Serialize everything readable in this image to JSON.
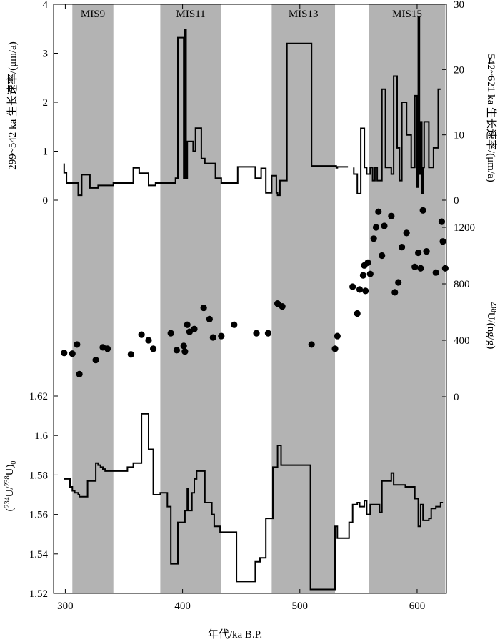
{
  "chart_data": {
    "type": "composite",
    "x_axis": {
      "label": "年代/ka B.P.",
      "range": [
        290,
        625
      ],
      "ticks": [
        300,
        400,
        500,
        600
      ]
    },
    "mis_bands": [
      {
        "label": "MIS9",
        "start": 306,
        "end": 341
      },
      {
        "label": "MIS11",
        "start": 381,
        "end": 433
      },
      {
        "label": "MIS13",
        "start": 476,
        "end": 530
      },
      {
        "label": "MIS15",
        "start": 559,
        "end": 624
      }
    ],
    "panels": [
      {
        "id": "growth-rate",
        "type": "line",
        "left_axis": {
          "label": "299~542 ka 生长速率/(μm/a)",
          "range": [
            0,
            4
          ],
          "ticks": [
            0,
            1,
            2,
            3,
            4
          ]
        },
        "right_axis": {
          "label": "542~621 ka 生长速率/(μm/a)",
          "range": [
            0,
            30
          ],
          "ticks": [
            0,
            10,
            20,
            30
          ]
        },
        "series": [
          {
            "axis": "left",
            "x": [
              299,
              299,
              301,
              301,
              311,
              311,
              314,
              314,
              321,
              321,
              328,
              328,
              341,
              341,
              358,
              358,
              363,
              363,
              371,
              371,
              377,
              377,
              394,
              394,
              396,
              396,
              401,
              401,
              402,
              402,
              403,
              403,
              404,
              404,
              409,
              409,
              411,
              411,
              416,
              416,
              419,
              419,
              428,
              428,
              433,
              433,
              447,
              447,
              462,
              462,
              467,
              467,
              471,
              471,
              476,
              476,
              480,
              480,
              481,
              481,
              483,
              483,
              489,
              489,
              489,
              489,
              510,
              510,
              531,
              531,
              532,
              532,
              541
            ],
            "y": [
              0.75,
              0.56,
              0.56,
              0.35,
              0.35,
              0.1,
              0.1,
              0.52,
              0.52,
              0.25,
              0.25,
              0.3,
              0.3,
              0.35,
              0.35,
              0.66,
              0.66,
              0.55,
              0.55,
              0.3,
              0.3,
              0.35,
              0.35,
              0.45,
              0.45,
              3.32,
              3.32,
              0.45,
              0.45,
              3.48,
              3.48,
              0.45,
              0.45,
              1.2,
              1.2,
              1.0,
              1.0,
              1.47,
              1.47,
              0.85,
              0.85,
              0.75,
              0.75,
              0.45,
              0.45,
              0.35,
              0.35,
              0.68,
              0.68,
              0.45,
              0.45,
              0.65,
              0.65,
              0.15,
              0.15,
              0.5,
              0.5,
              0.15,
              0.15,
              0.1,
              0.1,
              0.4,
              0.4,
              0.4,
              0.4,
              3.2,
              3.2,
              0.7,
              0.7,
              0.66,
              0.66,
              0.68,
              0.68
            ]
          },
          {
            "axis": "right",
            "x": [
              546,
              546,
              549,
              549,
              552,
              552,
              555,
              555,
              557,
              557,
              560,
              560,
              562,
              562,
              564,
              564,
              566,
              566,
              570,
              570,
              573,
              573,
              578,
              578,
              580,
              580,
              583,
              583,
              585,
              585,
              587,
              587,
              591,
              591,
              595,
              595,
              598,
              598,
              600,
              600,
              601,
              601,
              602,
              602,
              603,
              603,
              604,
              604,
              605,
              605,
              606,
              606,
              610,
              610,
              614,
              614,
              618,
              618,
              620
            ],
            "y": [
              5,
              4,
              4,
              1,
              1,
              11,
              11,
              5,
              5,
              4,
              4,
              5,
              5,
              3,
              3,
              5,
              5,
              3,
              3,
              17,
              17,
              5,
              5,
              4,
              4,
              19,
              19,
              8,
              8,
              3,
              3,
              15,
              15,
              10,
              10,
              5,
              5,
              16,
              16,
              2,
              2,
              28,
              28,
              4,
              4,
              12,
              12,
              1,
              1,
              5,
              5,
              12,
              12,
              5,
              5,
              8,
              8,
              17,
              17
            ]
          }
        ]
      },
      {
        "id": "uranium-238",
        "type": "scatter",
        "right_axis": {
          "label": "238U/(ng/g)",
          "range": [
            0,
            1200
          ],
          "ticks": [
            0,
            400,
            800,
            1200
          ]
        },
        "points": [
          [
            299,
            310
          ],
          [
            306,
            305
          ],
          [
            310,
            370
          ],
          [
            312,
            160
          ],
          [
            326,
            260
          ],
          [
            332,
            350
          ],
          [
            336,
            340
          ],
          [
            356,
            300
          ],
          [
            365,
            440
          ],
          [
            371,
            400
          ],
          [
            375,
            340
          ],
          [
            390,
            450
          ],
          [
            395,
            330
          ],
          [
            401,
            360
          ],
          [
            402,
            320
          ],
          [
            404,
            510
          ],
          [
            406,
            460
          ],
          [
            410,
            480
          ],
          [
            418,
            630
          ],
          [
            423,
            550
          ],
          [
            426,
            420
          ],
          [
            433,
            430
          ],
          [
            444,
            510
          ],
          [
            463,
            450
          ],
          [
            473,
            450
          ],
          [
            481,
            660
          ],
          [
            485,
            640
          ],
          [
            510,
            370
          ],
          [
            530,
            340
          ],
          [
            532,
            430
          ],
          [
            545,
            780
          ],
          [
            549,
            590
          ],
          [
            551,
            760
          ],
          [
            554,
            860
          ],
          [
            555,
            930
          ],
          [
            556,
            750
          ],
          [
            558,
            950
          ],
          [
            560,
            870
          ],
          [
            563,
            1120
          ],
          [
            565,
            1200
          ],
          [
            567,
            1310
          ],
          [
            570,
            1000
          ],
          [
            572,
            1210
          ],
          [
            578,
            1280
          ],
          [
            581,
            740
          ],
          [
            584,
            810
          ],
          [
            587,
            1060
          ],
          [
            591,
            1160
          ],
          [
            598,
            920
          ],
          [
            601,
            1020
          ],
          [
            603,
            910
          ],
          [
            605,
            1320
          ],
          [
            608,
            1030
          ],
          [
            616,
            880
          ],
          [
            621,
            1240
          ],
          [
            622,
            1100
          ],
          [
            624,
            910
          ]
        ]
      },
      {
        "id": "uranium-ratio",
        "type": "line",
        "left_axis": {
          "label": "(234U/238U)0",
          "range": [
            1.52,
            1.62
          ],
          "ticks": [
            1.52,
            1.54,
            1.56,
            1.58,
            1.6,
            1.62
          ]
        },
        "x": [
          299,
          304,
          304,
          306,
          306,
          308,
          308,
          311,
          311,
          312,
          312,
          319,
          319,
          326,
          326,
          328,
          328,
          330,
          330,
          332,
          332,
          334,
          334,
          353,
          353,
          358,
          358,
          365,
          365,
          371,
          371,
          375,
          375,
          381,
          381,
          387,
          387,
          390,
          390,
          396,
          396,
          402,
          402,
          404,
          404,
          405,
          405,
          408,
          408,
          410,
          410,
          412,
          412,
          419,
          419,
          425,
          425,
          427,
          427,
          432,
          432,
          446,
          446,
          462,
          462,
          466,
          466,
          471,
          471,
          477,
          477,
          481,
          481,
          484,
          484,
          509,
          509,
          530,
          530,
          532,
          532,
          542,
          542,
          545,
          545,
          549,
          549,
          551,
          551,
          555,
          555,
          557,
          557,
          560,
          560,
          568,
          568,
          570,
          570,
          578,
          578,
          580,
          580,
          587,
          587,
          590,
          590,
          598,
          598,
          601,
          601,
          603,
          603,
          605,
          605,
          610,
          610,
          612,
          612,
          616,
          616,
          620,
          620,
          622
        ],
        "y": [
          1.578,
          1.578,
          1.574,
          1.574,
          1.572,
          1.572,
          1.571,
          1.571,
          1.57,
          1.57,
          1.569,
          1.569,
          1.577,
          1.577,
          1.586,
          1.586,
          1.585,
          1.585,
          1.584,
          1.584,
          1.583,
          1.583,
          1.582,
          1.582,
          1.584,
          1.584,
          1.586,
          1.586,
          1.611,
          1.611,
          1.593,
          1.593,
          1.57,
          1.57,
          1.571,
          1.571,
          1.564,
          1.564,
          1.535,
          1.535,
          1.556,
          1.556,
          1.562,
          1.562,
          1.573,
          1.573,
          1.562,
          1.562,
          1.571,
          1.571,
          1.578,
          1.578,
          1.582,
          1.582,
          1.566,
          1.566,
          1.56,
          1.56,
          1.554,
          1.554,
          1.551,
          1.551,
          1.526,
          1.526,
          1.536,
          1.536,
          1.538,
          1.538,
          1.558,
          1.558,
          1.584,
          1.584,
          1.595,
          1.595,
          1.585,
          1.585,
          1.522,
          1.522,
          1.554,
          1.554,
          1.548,
          1.548,
          1.556,
          1.556,
          1.565,
          1.565,
          1.566,
          1.566,
          1.564,
          1.564,
          1.567,
          1.567,
          1.56,
          1.56,
          1.565,
          1.565,
          1.561,
          1.561,
          1.577,
          1.577,
          1.581,
          1.581,
          1.575,
          1.575,
          1.575,
          1.575,
          1.574,
          1.574,
          1.568,
          1.568,
          1.554,
          1.554,
          1.565,
          1.565,
          1.557,
          1.557,
          1.558,
          1.558,
          1.563,
          1.563,
          1.564,
          1.564,
          1.566,
          1.566
        ]
      }
    ]
  }
}
